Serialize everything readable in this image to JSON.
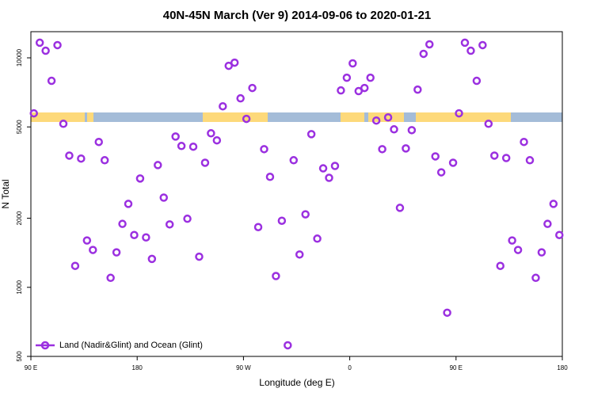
{
  "chart_data": {
    "type": "scatter",
    "title": "40N-45N March (Ver 9)   2014-09-06 to 2020-01-21",
    "x_label": "Longitude (deg E)",
    "y_label": "N Total",
    "series": [
      {
        "name": "Land (Nadir&Glint) and Ocean (Glint)",
        "color": "#9b30e0",
        "x": [
          92.5,
          97.5,
          102.5,
          107.5,
          112.5,
          117.5,
          122.5,
          127.5,
          132.5,
          137.5,
          142.5,
          147.5,
          152.5,
          157.5,
          162.5,
          167.5,
          172.5,
          177.5,
          182.5,
          187.5,
          192.5,
          197.5,
          202.5,
          207.5,
          212.5,
          217.5,
          222.5,
          227.5,
          232.5,
          237.5,
          242.5,
          247.5,
          252.5,
          257.5,
          262.5,
          267.5,
          272.5,
          277.5,
          282.5,
          287.5,
          292.5,
          297.5,
          302.5,
          307.5,
          312.5,
          317.5,
          322.5,
          327.5,
          332.5,
          337.5,
          342.5,
          347.5,
          352.5,
          357.5,
          362.5,
          367.5,
          372.5,
          377.5,
          382.5,
          387.5,
          392.5,
          397.5,
          402.5,
          407.5,
          412.5,
          417.5,
          422.5,
          427.5,
          432.5,
          437.5,
          442.5,
          447.5,
          452.5,
          457.5,
          462.5,
          467.5,
          472.5,
          477.5,
          482.5,
          487.5,
          492.5,
          497.5,
          502.5,
          507.5,
          512.5,
          517.5,
          522.5,
          527.5,
          532.5,
          537.5
        ],
        "values": [
          5730,
          11640,
          10740,
          7940,
          11360,
          5160,
          3750,
          1240,
          3640,
          1600,
          1455,
          4300,
          3580,
          1100,
          1420,
          1890,
          2310,
          1690,
          2980,
          1650,
          1330,
          3410,
          2460,
          1880,
          4540,
          4130,
          1990,
          4100,
          1360,
          3490,
          4690,
          4370,
          6150,
          9230,
          9530,
          6660,
          5420,
          7390,
          1830,
          4000,
          3030,
          1120,
          1950,
          559,
          3580,
          1390,
          2080,
          4650,
          1630,
          3300,
          3000,
          3380,
          7210,
          8190,
          9460,
          7160,
          7390,
          8190,
          5330,
          4000,
          5500,
          4880,
          2220,
          4030,
          4840,
          7270,
          10410,
          11450,
          3720,
          3170,
          775,
          3490,
          5730,
          11640,
          10740,
          7940,
          11360,
          5160,
          3750,
          1240,
          3660,
          1600,
          1455,
          4300,
          3580,
          1100,
          1420,
          1890,
          2310,
          1690
        ]
      }
    ],
    "xlim": [
      90,
      540
    ],
    "xticks": [
      {
        "value": 90,
        "label": "90 E"
      },
      {
        "value": 180,
        "label": "180"
      },
      {
        "value": 270,
        "label": "90 W"
      },
      {
        "value": 360,
        "label": "0"
      },
      {
        "value": 450,
        "label": "90 E"
      },
      {
        "value": 540,
        "label": "180"
      }
    ],
    "ylim": [
      500,
      13000
    ],
    "yticks": [
      500,
      1000,
      2000,
      5000,
      10000
    ],
    "y_scale": "log",
    "legend": "lower left"
  }
}
